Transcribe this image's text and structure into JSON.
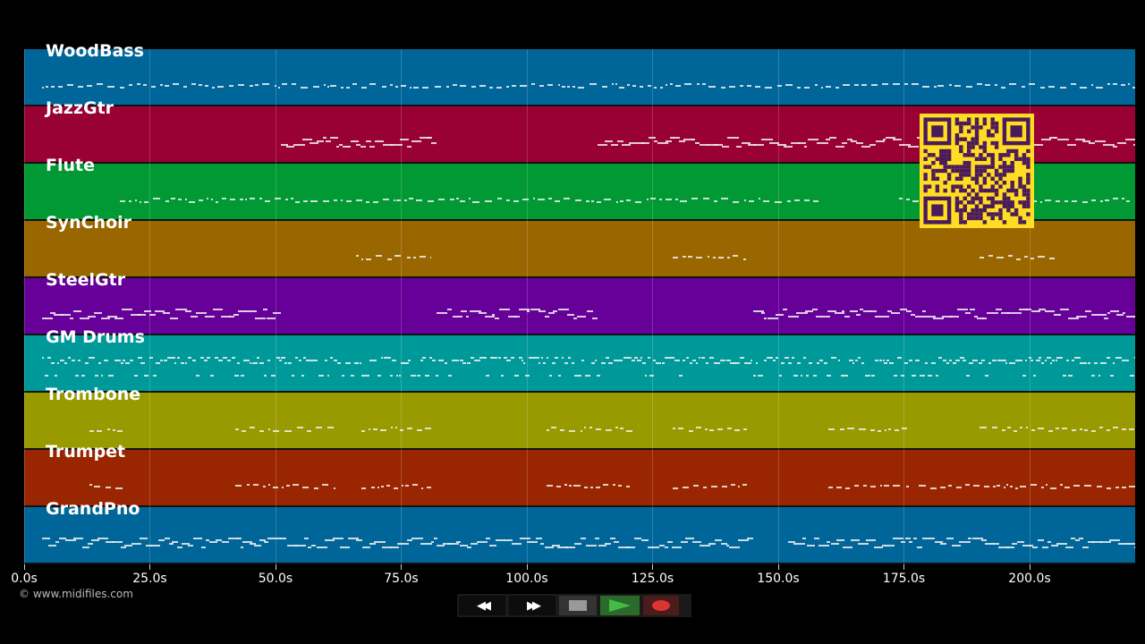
{
  "tracks": [
    {
      "name": "WoodBass",
      "color": "#006699",
      "ranges": [
        [
          3.6,
          221
        ]
      ],
      "style": "sparse"
    },
    {
      "name": "JazzGtr",
      "color": "#990033",
      "ranges": [
        [
          51,
          82
        ],
        [
          114,
          221
        ]
      ],
      "style": "dense"
    },
    {
      "name": "Flute",
      "color": "#009933",
      "ranges": [
        [
          19,
          158
        ],
        [
          174,
          220
        ]
      ],
      "style": "sparse"
    },
    {
      "name": "SynChoir",
      "color": "#996600",
      "ranges": [
        [
          66,
          81
        ],
        [
          129,
          144
        ],
        [
          190,
          205
        ]
      ],
      "style": "sparse"
    },
    {
      "name": "SteelGtr",
      "color": "#660099",
      "ranges": [
        [
          3.6,
          51
        ],
        [
          82,
          114
        ],
        [
          145,
          221
        ]
      ],
      "style": "dense"
    },
    {
      "name": "GM Drums",
      "color": "#009999",
      "ranges": [
        [
          3.6,
          221
        ]
      ],
      "style": "drums"
    },
    {
      "name": "Trombone",
      "color": "#999900",
      "ranges": [
        [
          13,
          20
        ],
        [
          42,
          62
        ],
        [
          67,
          81
        ],
        [
          104,
          121
        ],
        [
          129,
          144
        ],
        [
          160,
          176
        ],
        [
          190,
          221
        ]
      ],
      "style": "sparse"
    },
    {
      "name": "Trumpet",
      "color": "#992600",
      "ranges": [
        [
          13,
          20
        ],
        [
          42,
          62
        ],
        [
          67,
          81
        ],
        [
          104,
          121
        ],
        [
          129,
          144
        ],
        [
          160,
          176
        ],
        [
          178,
          221
        ]
      ],
      "style": "sparse"
    },
    {
      "name": "GrandPno",
      "color": "#006699",
      "ranges": [
        [
          3.6,
          145
        ],
        [
          152,
          221
        ]
      ],
      "style": "dense"
    }
  ],
  "axis": {
    "ticks": [
      "0.0s",
      "25.0s",
      "50.0s",
      "75.0s",
      "100.0s",
      "125.0s",
      "150.0s",
      "175.0s",
      "200.0s"
    ],
    "values": [
      0,
      25,
      50,
      75,
      100,
      125,
      150,
      175,
      200
    ],
    "max": 221
  },
  "controls": {
    "rewind": "◀◀",
    "forward": "▶▶",
    "stop": "stop-icon",
    "play": "play-icon",
    "record": "record-icon"
  },
  "copyright": "© www.midifiles.com"
}
